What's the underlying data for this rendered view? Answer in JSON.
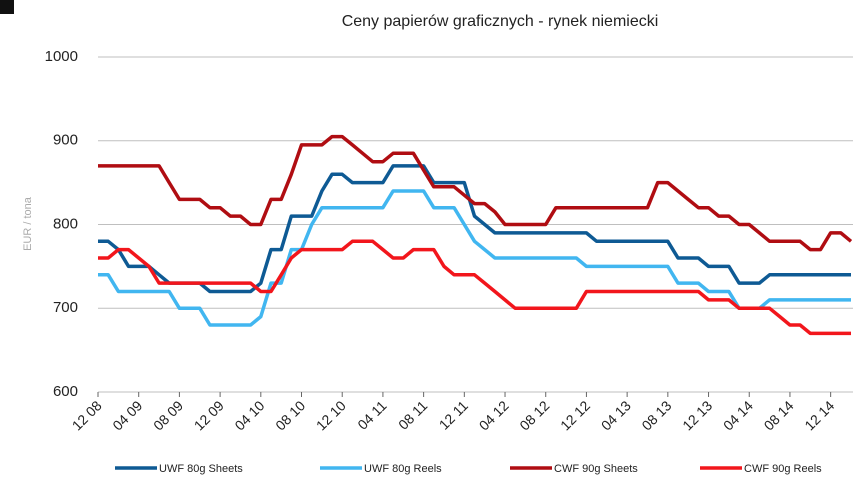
{
  "chart_data": {
    "type": "line",
    "title": "Ceny papierów graficznych - rynek niemiecki",
    "y_label": "EUR / tona",
    "categories": [
      "12 08",
      null,
      null,
      null,
      "04 09",
      null,
      null,
      null,
      "08 09",
      null,
      null,
      null,
      "12 09",
      null,
      null,
      null,
      "04 10",
      null,
      null,
      null,
      "08 10",
      null,
      null,
      null,
      "12 10",
      null,
      null,
      null,
      "04 11",
      null,
      null,
      null,
      "08 11",
      null,
      null,
      null,
      "12 11",
      null,
      null,
      null,
      "04 12",
      null,
      null,
      null,
      "08 12",
      null,
      null,
      null,
      "12 12",
      null,
      null,
      null,
      "04 13",
      null,
      null,
      null,
      "08 13",
      null,
      null,
      null,
      "12 13",
      null,
      null,
      null,
      "04 14",
      null,
      null,
      null,
      "08 14",
      null,
      null,
      null,
      "12 14",
      null,
      null
    ],
    "series": [
      {
        "name": "UWF 80g Sheets",
        "color": "#0e5a94",
        "values": [
          780,
          780,
          770,
          750,
          750,
          750,
          740,
          730,
          730,
          730,
          730,
          720,
          720,
          720,
          720,
          720,
          730,
          770,
          770,
          810,
          810,
          810,
          840,
          860,
          860,
          850,
          850,
          850,
          850,
          870,
          870,
          870,
          870,
          850,
          850,
          850,
          850,
          810,
          800,
          790,
          790,
          790,
          790,
          790,
          790,
          790,
          790,
          790,
          790,
          780,
          780,
          780,
          780,
          780,
          780,
          780,
          780,
          760,
          760,
          760,
          750,
          750,
          750,
          730,
          730,
          730,
          740,
          740,
          740,
          740,
          740,
          740,
          740,
          740,
          740
        ]
      },
      {
        "name": "UWF 80g Reels",
        "color": "#41b6f0",
        "values": [
          740,
          740,
          720,
          720,
          720,
          720,
          720,
          720,
          700,
          700,
          700,
          680,
          680,
          680,
          680,
          680,
          690,
          730,
          730,
          770,
          770,
          800,
          820,
          820,
          820,
          820,
          820,
          820,
          820,
          840,
          840,
          840,
          840,
          820,
          820,
          820,
          800,
          780,
          770,
          760,
          760,
          760,
          760,
          760,
          760,
          760,
          760,
          760,
          750,
          750,
          750,
          750,
          750,
          750,
          750,
          750,
          750,
          730,
          730,
          730,
          720,
          720,
          720,
          700,
          700,
          700,
          710,
          710,
          710,
          710,
          710,
          710,
          710,
          710,
          710
        ]
      },
      {
        "name": "CWF 90g Sheets",
        "color": "#b00d12",
        "values": [
          870,
          870,
          870,
          870,
          870,
          870,
          870,
          850,
          830,
          830,
          830,
          820,
          820,
          810,
          810,
          800,
          800,
          830,
          830,
          860,
          895,
          895,
          895,
          905,
          905,
          895,
          885,
          875,
          875,
          885,
          885,
          885,
          865,
          845,
          845,
          845,
          835,
          825,
          825,
          815,
          800,
          800,
          800,
          800,
          800,
          820,
          820,
          820,
          820,
          820,
          820,
          820,
          820,
          820,
          820,
          850,
          850,
          840,
          830,
          820,
          820,
          810,
          810,
          800,
          800,
          790,
          780,
          780,
          780,
          780,
          770,
          770,
          790,
          790,
          780
        ]
      },
      {
        "name": "CWF 90g Reels",
        "color": "#f2161c",
        "values": [
          760,
          760,
          770,
          770,
          760,
          750,
          730,
          730,
          730,
          730,
          730,
          730,
          730,
          730,
          730,
          730,
          720,
          720,
          740,
          760,
          770,
          770,
          770,
          770,
          770,
          780,
          780,
          780,
          770,
          760,
          760,
          770,
          770,
          770,
          750,
          740,
          740,
          740,
          730,
          720,
          710,
          700,
          700,
          700,
          700,
          700,
          700,
          700,
          720,
          720,
          720,
          720,
          720,
          720,
          720,
          720,
          720,
          720,
          720,
          720,
          710,
          710,
          710,
          700,
          700,
          700,
          700,
          690,
          680,
          680,
          670,
          670,
          670,
          670,
          670
        ]
      }
    ],
    "ylim": [
      600,
      1000
    ],
    "yticks": [
      600,
      700,
      800,
      900,
      1000
    ],
    "grid": true,
    "legend": "bottom"
  }
}
